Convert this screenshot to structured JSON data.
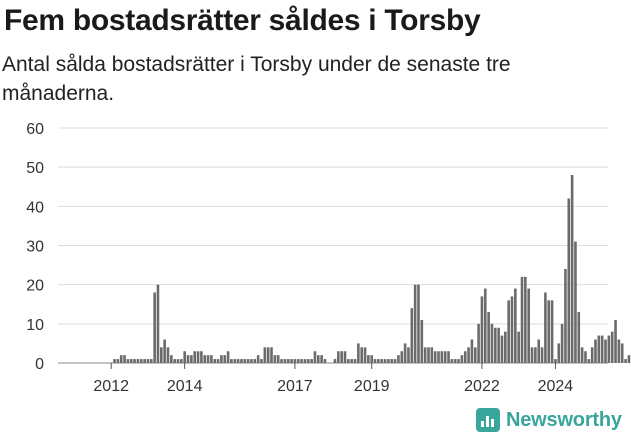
{
  "title": "Fem bostadsrätter såldes i Torsby",
  "subtitle": "Antal sålda bostadsrätter i Torsby under de senaste tre månaderna.",
  "logo": {
    "text": "Newsworthy",
    "icon": "bar-chart-icon",
    "color": "#3aa59b"
  },
  "chart_data": {
    "type": "bar",
    "x_start": "2011-01",
    "frequency": "monthly",
    "ylim": [
      0,
      60
    ],
    "yticks": [
      0,
      10,
      20,
      30,
      40,
      50,
      60
    ],
    "xticks": [
      {
        "label": "2012",
        "index": 15
      },
      {
        "label": "2014",
        "index": 37
      },
      {
        "label": "2017",
        "index": 70
      },
      {
        "label": "2019",
        "index": 93
      },
      {
        "label": "2022",
        "index": 126
      },
      {
        "label": "2024",
        "index": 148
      }
    ],
    "bar_color": "#6b6b6e",
    "highlight_color": "#2a9d95",
    "highlight_label": "5",
    "values": [
      0,
      0,
      0,
      0,
      0,
      0,
      0,
      0,
      0,
      0,
      0,
      0,
      0,
      0,
      0,
      0,
      1,
      1,
      2,
      2,
      1,
      1,
      1,
      1,
      1,
      1,
      1,
      1,
      18,
      20,
      4,
      6,
      4,
      2,
      1,
      1,
      1,
      3,
      2,
      2,
      3,
      3,
      3,
      2,
      2,
      2,
      1,
      1,
      2,
      2,
      3,
      1,
      1,
      1,
      1,
      1,
      1,
      1,
      1,
      2,
      1,
      4,
      4,
      4,
      2,
      2,
      1,
      1,
      1,
      1,
      1,
      1,
      1,
      1,
      1,
      1,
      3,
      2,
      2,
      1,
      0,
      0,
      1,
      3,
      3,
      3,
      1,
      1,
      1,
      5,
      4,
      4,
      2,
      2,
      1,
      1,
      1,
      1,
      1,
      1,
      1,
      2,
      3,
      5,
      4,
      14,
      20,
      20,
      11,
      4,
      4,
      4,
      3,
      3,
      3,
      3,
      3,
      1,
      1,
      1,
      2,
      3,
      4,
      6,
      4,
      10,
      17,
      19,
      13,
      10,
      9,
      9,
      7,
      8,
      16,
      17,
      19,
      8,
      22,
      22,
      19,
      4,
      4,
      6,
      4,
      18,
      16,
      16,
      1,
      5,
      10,
      24,
      42,
      48,
      31,
      13,
      4,
      3,
      1,
      4,
      6,
      7,
      7,
      6,
      7,
      8,
      11,
      6,
      5,
      1,
      2,
      3,
      5
    ]
  }
}
